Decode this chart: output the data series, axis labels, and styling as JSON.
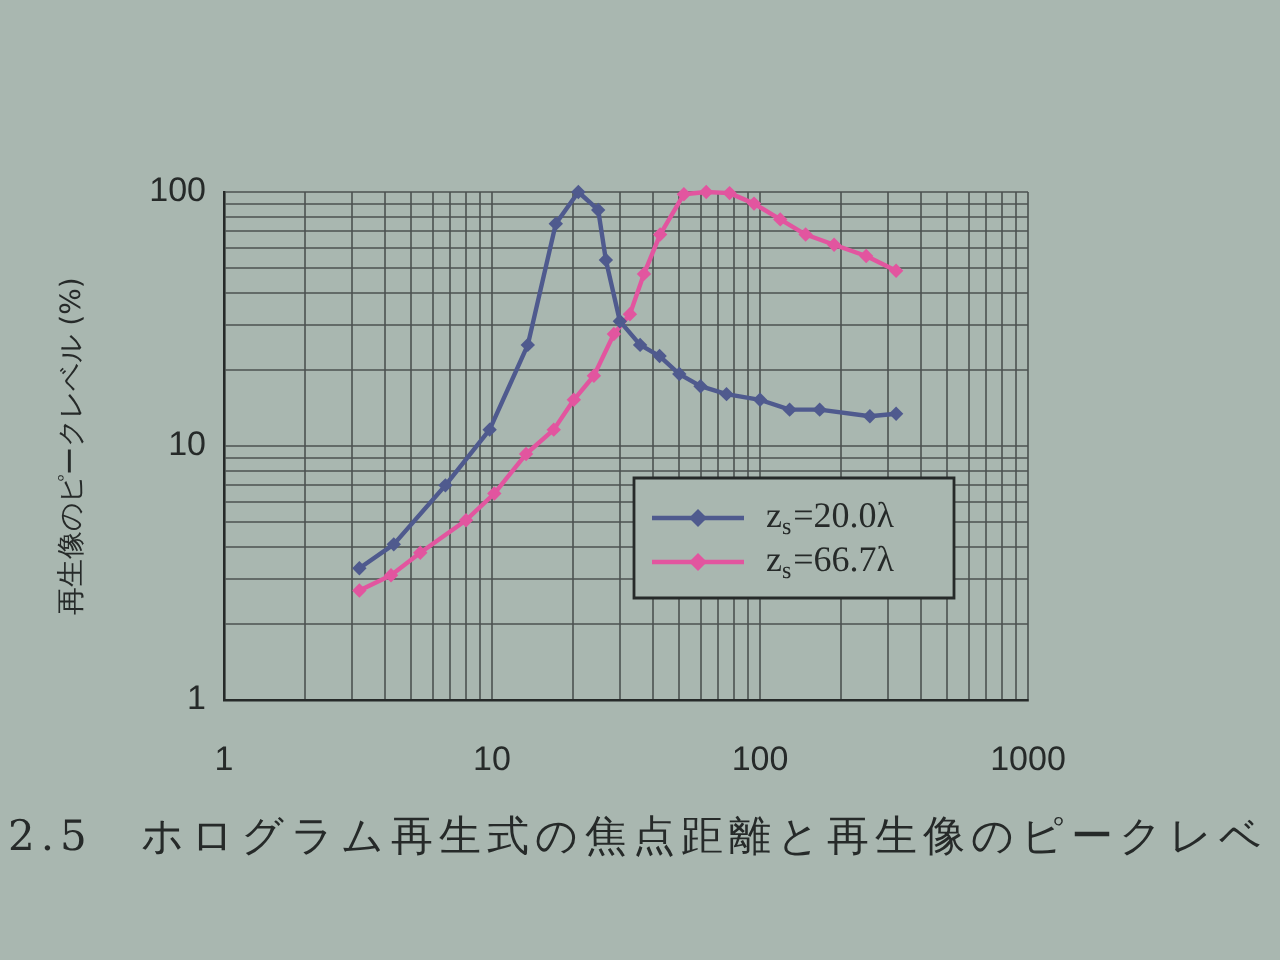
{
  "chart_data": {
    "type": "line",
    "ylabel": "再生像のピークレベル (%)",
    "annotations": [
      "2.5　ホログラム再生式の焦点距離と再生像のピークレベ"
    ],
    "series": [
      {
        "name": "z$_{s}$=20.0λ",
        "color": "#4f5a8e",
        "x": [
          3.2,
          4.3,
          6.7,
          9.8,
          13.6,
          17.3,
          21,
          24.9,
          26.6,
          30,
          35.7,
          42.2,
          50,
          60,
          75,
          100,
          129,
          167,
          257,
          322
        ],
        "values": [
          3.3,
          4.1,
          7.0,
          11.6,
          25,
          75,
          100,
          85,
          54,
          31,
          25,
          22.6,
          19.2,
          17.2,
          16,
          15.2,
          13.9,
          13.9,
          13.1,
          13.4
        ]
      },
      {
        "name": "z$_{s}$=66.7λ",
        "color": "#e2559f",
        "x": [
          3.2,
          4.2,
          5.4,
          8.0,
          10.2,
          13.4,
          17,
          20.2,
          24,
          28.5,
          32.7,
          36.9,
          42.4,
          52,
          63,
          77,
          95,
          119,
          148,
          189,
          249,
          322
        ],
        "values": [
          2.7,
          3.1,
          3.8,
          5.1,
          6.5,
          9.3,
          11.6,
          15.2,
          18.9,
          27.6,
          33,
          47.6,
          68,
          98,
          100,
          99,
          90,
          78,
          68,
          62,
          56,
          49
        ]
      }
    ],
    "log": "xy",
    "xlim": [
      1,
      1000
    ],
    "ylim": [
      1,
      100
    ],
    "xticks": [
      1,
      {
        "value": 2,
        "label": null
      },
      {
        "value": 3,
        "label": null
      },
      {
        "value": 4,
        "label": null
      },
      {
        "value": 5,
        "label": null
      },
      {
        "value": 6,
        "label": null
      },
      {
        "value": 7,
        "label": null
      },
      {
        "value": 8,
        "label": null
      },
      {
        "value": 9,
        "label": null
      },
      10,
      {
        "value": 20,
        "label": null
      },
      {
        "value": 30,
        "label": null
      },
      {
        "value": 40,
        "label": null
      },
      {
        "value": 50,
        "label": null
      },
      {
        "value": 60,
        "label": null
      },
      {
        "value": 70,
        "label": null
      },
      {
        "value": 80,
        "label": null
      },
      {
        "value": 90,
        "label": null
      },
      100,
      {
        "value": 200,
        "label": null
      },
      {
        "value": 300,
        "label": null
      },
      {
        "value": 400,
        "label": null
      },
      {
        "value": 500,
        "label": null
      },
      {
        "value": 600,
        "label": null
      },
      {
        "value": 700,
        "label": null
      },
      {
        "value": 800,
        "label": null
      },
      {
        "value": 900,
        "label": null
      },
      1000
    ],
    "yticks": [
      1,
      {
        "value": 2,
        "label": null
      },
      {
        "value": 3,
        "label": null
      },
      {
        "value": 4,
        "label": null
      },
      {
        "value": 5,
        "label": null
      },
      {
        "value": 6,
        "label": null
      },
      {
        "value": 7,
        "label": null
      },
      {
        "value": 8,
        "label": null
      },
      {
        "value": 9,
        "label": null
      },
      10,
      {
        "value": 20,
        "label": null
      },
      {
        "value": 30,
        "label": null
      },
      {
        "value": 40,
        "label": null
      },
      {
        "value": 50,
        "label": null
      },
      {
        "value": 60,
        "label": null
      },
      {
        "value": 70,
        "label": null
      },
      {
        "value": 80,
        "label": null
      },
      {
        "value": 90,
        "label": null
      },
      100
    ],
    "grid": true,
    "legend": "bottom right",
    "marker": "diamond",
    "line_style": "solid"
  }
}
